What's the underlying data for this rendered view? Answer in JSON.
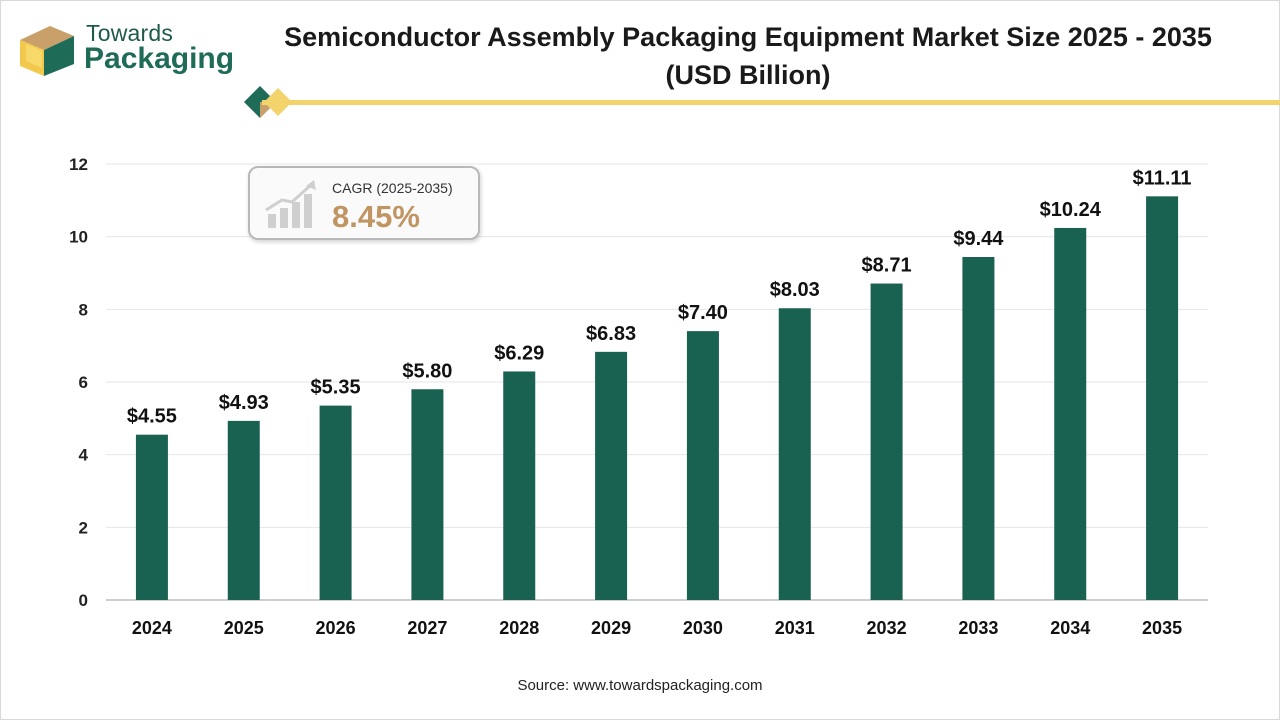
{
  "brand": {
    "line1": "Towards",
    "line2": "Packaging"
  },
  "header": {
    "title_line1": "Semiconductor Assembly Packaging Equipment Market Size 2025 - 2035",
    "title_line2": "(USD Billion)"
  },
  "cagr": {
    "label": "CAGR (2025-2035)",
    "value": "8.45%"
  },
  "source": "Source: www.towardspackaging.com",
  "colors": {
    "bar": "#196150",
    "accent": "#f3d36b",
    "cagr": "#c09562",
    "brand": "#1e6b58"
  },
  "chart_data": {
    "type": "bar",
    "title": "Semiconductor Assembly Packaging Equipment Market Size 2025 - 2035 (USD Billion)",
    "categories": [
      "2024",
      "2025",
      "2026",
      "2027",
      "2028",
      "2029",
      "2030",
      "2031",
      "2032",
      "2033",
      "2034",
      "2035"
    ],
    "values": [
      4.55,
      4.93,
      5.35,
      5.8,
      6.29,
      6.83,
      7.4,
      8.03,
      8.71,
      9.44,
      10.24,
      11.11
    ],
    "data_labels": [
      "$4.55",
      "$4.93",
      "$5.35",
      "$5.80",
      "$6.29",
      "$6.83",
      "$7.40",
      "$8.03",
      "$8.71",
      "$9.44",
      "$10.24",
      "$11.11"
    ],
    "yticks": [
      "0",
      "2",
      "4",
      "6",
      "8",
      "10",
      "12"
    ],
    "ylim": [
      0,
      12
    ],
    "xlabel": "",
    "ylabel": "",
    "grid": true,
    "legend": "none"
  }
}
